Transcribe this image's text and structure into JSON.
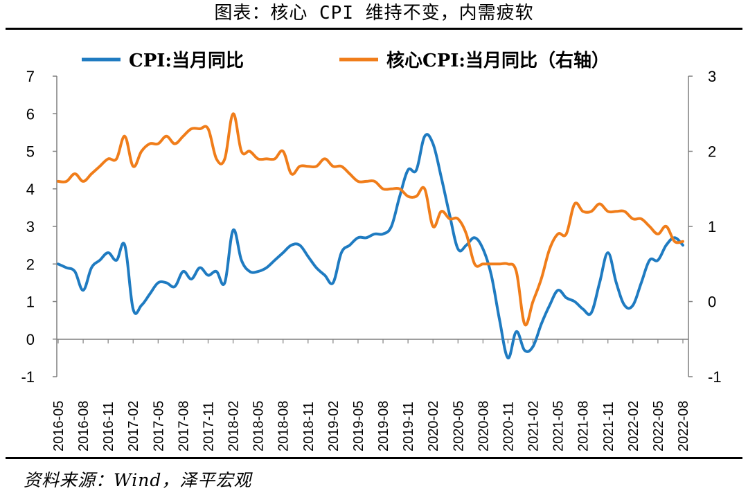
{
  "title": "图表：核心 CPI 维持不变，内需疲软",
  "source": "资料来源：Wind，泽平宏观",
  "chart_data": {
    "type": "line",
    "title": "图表：核心 CPI 维持不变，内需疲软",
    "legend_position": "top",
    "x": [
      "2016-05",
      "2016-06",
      "2016-07",
      "2016-08",
      "2016-09",
      "2016-10",
      "2016-11",
      "2016-12",
      "2017-01",
      "2017-02",
      "2017-03",
      "2017-04",
      "2017-05",
      "2017-06",
      "2017-07",
      "2017-08",
      "2017-09",
      "2017-10",
      "2017-11",
      "2017-12",
      "2018-01",
      "2018-02",
      "2018-03",
      "2018-04",
      "2018-05",
      "2018-06",
      "2018-07",
      "2018-08",
      "2018-09",
      "2018-10",
      "2018-11",
      "2018-12",
      "2019-01",
      "2019-02",
      "2019-03",
      "2019-04",
      "2019-05",
      "2019-06",
      "2019-07",
      "2019-08",
      "2019-09",
      "2019-10",
      "2019-11",
      "2019-12",
      "2020-01",
      "2020-02",
      "2020-03",
      "2020-04",
      "2020-05",
      "2020-06",
      "2020-07",
      "2020-08",
      "2020-09",
      "2020-10",
      "2020-11",
      "2020-12",
      "2021-01",
      "2021-02",
      "2021-03",
      "2021-04",
      "2021-05",
      "2021-06",
      "2021-07",
      "2021-08",
      "2021-09",
      "2021-10",
      "2021-11",
      "2021-12",
      "2022-01",
      "2022-02",
      "2022-03",
      "2022-04",
      "2022-05",
      "2022-06",
      "2022-07",
      "2022-08"
    ],
    "x_tick_labels": [
      "2016-05",
      "2016-08",
      "2016-11",
      "2017-02",
      "2017-05",
      "2017-08",
      "2017-11",
      "2018-02",
      "2018-05",
      "2018-08",
      "2018-11",
      "2019-02",
      "2019-05",
      "2019-08",
      "2019-11",
      "2020-02",
      "2020-05",
      "2020-08",
      "2020-11",
      "2021-02",
      "2021-05",
      "2021-08",
      "2021-11",
      "2022-02",
      "2022-05",
      "2022-08"
    ],
    "series": [
      {
        "name": "CPI:当月同比",
        "axis": "left",
        "color": "#1f7bc1",
        "values": [
          2.0,
          1.9,
          1.8,
          1.3,
          1.9,
          2.1,
          2.3,
          2.1,
          2.5,
          0.8,
          0.9,
          1.2,
          1.5,
          1.5,
          1.4,
          1.8,
          1.6,
          1.9,
          1.7,
          1.8,
          1.5,
          2.9,
          2.1,
          1.8,
          1.8,
          1.9,
          2.1,
          2.3,
          2.5,
          2.5,
          2.2,
          1.9,
          1.7,
          1.5,
          2.3,
          2.5,
          2.7,
          2.7,
          2.8,
          2.8,
          3.0,
          3.8,
          4.5,
          4.5,
          5.4,
          5.2,
          4.3,
          3.3,
          2.4,
          2.5,
          2.7,
          2.4,
          1.7,
          0.5,
          -0.5,
          0.2,
          -0.3,
          -0.2,
          0.4,
          0.9,
          1.3,
          1.1,
          1.0,
          0.8,
          0.7,
          1.5,
          2.3,
          1.5,
          0.9,
          0.9,
          1.5,
          2.1,
          2.1,
          2.5,
          2.7,
          2.5
        ]
      },
      {
        "name": "核心CPI:当月同比（右轴）",
        "axis": "right",
        "color": "#f07d1a",
        "values": [
          1.6,
          1.6,
          1.7,
          1.6,
          1.7,
          1.8,
          1.9,
          1.9,
          2.2,
          1.8,
          2.0,
          2.1,
          2.1,
          2.2,
          2.1,
          2.2,
          2.3,
          2.3,
          2.3,
          1.9,
          1.9,
          2.5,
          2.0,
          2.0,
          1.9,
          1.9,
          1.9,
          2.0,
          1.7,
          1.8,
          1.8,
          1.8,
          1.9,
          1.8,
          1.8,
          1.7,
          1.6,
          1.6,
          1.6,
          1.5,
          1.5,
          1.5,
          1.4,
          1.4,
          1.5,
          1.0,
          1.2,
          1.1,
          1.1,
          0.9,
          0.5,
          0.5,
          0.5,
          0.5,
          0.5,
          0.4,
          -0.3,
          0.0,
          0.3,
          0.7,
          0.9,
          0.9,
          1.3,
          1.2,
          1.2,
          1.3,
          1.2,
          1.2,
          1.2,
          1.1,
          1.1,
          1.0,
          0.9,
          1.0,
          0.8,
          0.8
        ]
      }
    ],
    "y_left": {
      "min": -1,
      "max": 7,
      "ticks": [
        "-1",
        "0",
        "1",
        "2",
        "3",
        "4",
        "5",
        "6",
        "7"
      ]
    },
    "y_right": {
      "min": -1,
      "max": 3,
      "ticks": [
        "-1",
        "0",
        "1",
        "2",
        "3"
      ]
    },
    "grid": false
  }
}
